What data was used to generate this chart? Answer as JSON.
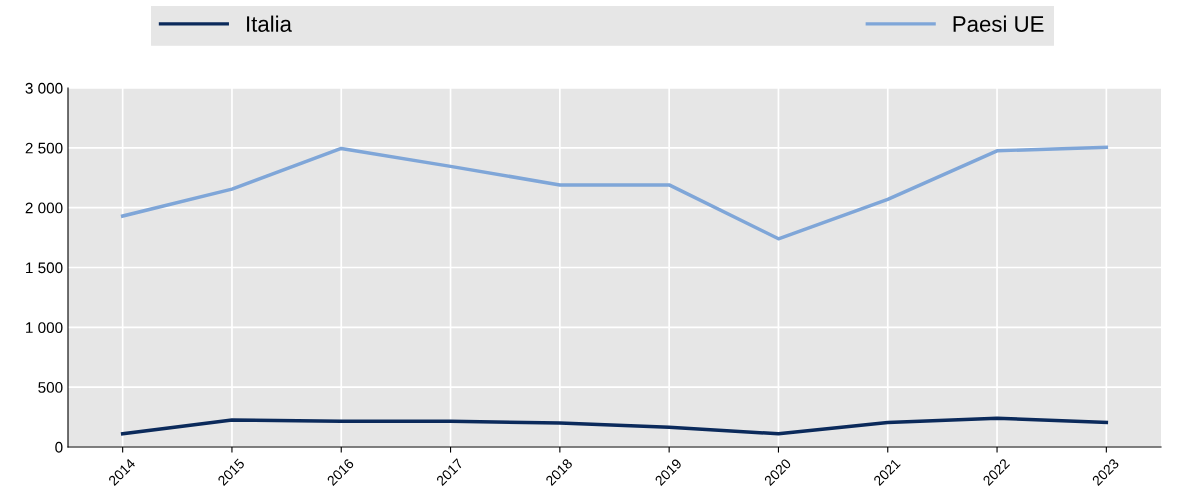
{
  "chart_data": {
    "type": "line",
    "categories": [
      "2014",
      "2015",
      "2016",
      "2017",
      "2018",
      "2019",
      "2020",
      "2021",
      "2022",
      "2023"
    ],
    "series": [
      {
        "name": "Italia",
        "color": "#0b2a5b",
        "values": [
          110,
          225,
          215,
          215,
          200,
          165,
          110,
          205,
          240,
          205
        ]
      },
      {
        "name": "Paesi UE",
        "color": "#7fa6d8",
        "values": [
          1930,
          2155,
          2495,
          2345,
          2190,
          2190,
          1740,
          2070,
          2475,
          2505
        ]
      }
    ],
    "ylim": [
      0,
      3000
    ],
    "yticks": [
      0,
      500,
      {
        "value": 1000,
        "label": "1 000"
      },
      {
        "value": 1500,
        "label": "1 500"
      },
      {
        "value": 2000,
        "label": "2 000"
      },
      {
        "value": 2500,
        "label": "2 500"
      },
      {
        "value": 3000,
        "label": "3 000"
      }
    ],
    "grid": true,
    "legend": "top",
    "marker": "none",
    "line_style": "solid"
  }
}
